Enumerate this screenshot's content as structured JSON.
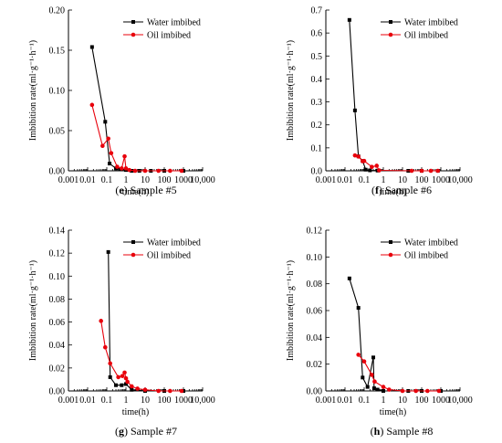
{
  "chart_data": [
    {
      "type": "line",
      "xscale": "log",
      "xlim": [
        0.001,
        10000
      ],
      "ylim": [
        0,
        0.2
      ],
      "yticks": [
        0.0,
        0.05,
        0.1,
        0.15,
        0.2
      ],
      "ytick_labels": [
        "0.00",
        "0.05",
        "0.10",
        "0.15",
        "0.20"
      ],
      "xticks": [
        0.001,
        0.01,
        0.1,
        1,
        10,
        100,
        1000,
        10000
      ],
      "xtick_labels": [
        "0.001",
        "0.01",
        "0.1",
        "1",
        "10",
        "100",
        "1000",
        "10,000"
      ],
      "xlabel": "time(h)",
      "ylabel": "Imbibition rate(ml·g⁻¹·h⁻¹)",
      "caption_letter": "e",
      "caption_text": " Sample #5",
      "legend_position": "top-right",
      "series": [
        {
          "name": "Water imbibed",
          "color": "#000000",
          "marker": "square",
          "x": [
            0.017,
            0.083,
            0.14,
            0.3,
            0.5,
            1,
            2,
            5,
            20,
            100,
            1000
          ],
          "y": [
            0.154,
            0.061,
            0.009,
            0.003,
            0.002,
            0.001,
            0.0,
            0.0,
            0.0,
            0.0,
            0.0
          ]
        },
        {
          "name": "Oil imbibed",
          "color": "#e8000b",
          "marker": "circle",
          "x": [
            0.017,
            0.06,
            0.12,
            0.17,
            0.35,
            0.6,
            0.85,
            1,
            1.5,
            3,
            10,
            50,
            200,
            800
          ],
          "y": [
            0.082,
            0.031,
            0.04,
            0.022,
            0.005,
            0.003,
            0.018,
            0.003,
            0.001,
            0.0,
            0.0,
            0.0,
            0.0,
            0.0
          ]
        }
      ]
    },
    {
      "type": "line",
      "xscale": "log",
      "xlim": [
        0.001,
        10000
      ],
      "ylim": [
        0,
        0.7
      ],
      "yticks": [
        0.0,
        0.1,
        0.2,
        0.3,
        0.4,
        0.5,
        0.6,
        0.7
      ],
      "ytick_labels": [
        "0.0",
        "0.1",
        "0.2",
        "0.3",
        "0.4",
        "0.5",
        "0.6",
        "0.7"
      ],
      "xticks": [
        0.001,
        0.01,
        0.1,
        1,
        10,
        100,
        1000,
        10000
      ],
      "xtick_labels": [
        "0.001",
        "0.01",
        "0.1",
        "1",
        "10",
        "100",
        "1000",
        "10,000"
      ],
      "xlabel": "time(h)",
      "ylabel": "Imbibition rate(ml·g⁻¹·h⁻¹)",
      "caption_letter": "f",
      "caption_text": " Sample #6",
      "legend_position": "top-right",
      "series": [
        {
          "name": "Water imbibed",
          "color": "#000000",
          "marker": "square",
          "x": [
            0.017,
            0.033,
            0.05,
            0.083,
            0.12,
            0.2,
            0.5,
            20,
            100,
            700
          ],
          "y": [
            0.657,
            0.263,
            0.063,
            0.043,
            0.005,
            0.002,
            0.001,
            0.0,
            0.0,
            0.0
          ]
        },
        {
          "name": "Oil imbibed",
          "color": "#e8000b",
          "marker": "circle",
          "x": [
            0.033,
            0.05,
            0.083,
            0.1,
            0.25,
            0.45,
            0.6,
            30,
            100,
            300,
            700
          ],
          "y": [
            0.067,
            0.062,
            0.042,
            0.043,
            0.017,
            0.022,
            0.002,
            0.0,
            0.0,
            0.0,
            0.0
          ]
        }
      ]
    },
    {
      "type": "line",
      "xscale": "log",
      "xlim": [
        0.001,
        10000
      ],
      "ylim": [
        0,
        0.14
      ],
      "yticks": [
        0.0,
        0.02,
        0.04,
        0.06,
        0.08,
        0.1,
        0.12,
        0.14
      ],
      "ytick_labels": [
        "0.00",
        "0.02",
        "0.04",
        "0.06",
        "0.08",
        "0.10",
        "0.12",
        "0.14"
      ],
      "xticks": [
        0.001,
        0.01,
        0.1,
        1,
        10,
        100,
        1000,
        10000
      ],
      "xtick_labels": [
        "0.001",
        "0.01",
        "0.1",
        "1",
        "10",
        "100",
        "1000",
        "10,000"
      ],
      "xlabel": "time(h)",
      "ylabel": "Imbibition rate(ml·g⁻¹·h⁻¹)",
      "caption_letter": "g",
      "caption_text": " Sample #7",
      "legend_position": "top-right",
      "series": [
        {
          "name": "Water imbibed",
          "color": "#000000",
          "marker": "square",
          "x": [
            0.12,
            0.15,
            0.3,
            0.6,
            1,
            2,
            10,
            100,
            1000
          ],
          "y": [
            0.121,
            0.012,
            0.005,
            0.005,
            0.006,
            0.001,
            0.0,
            0.0,
            0.0
          ]
        },
        {
          "name": "Oil imbibed",
          "color": "#e8000b",
          "marker": "circle",
          "x": [
            0.05,
            0.083,
            0.15,
            0.4,
            0.65,
            0.85,
            1,
            1.2,
            2,
            4,
            10,
            50,
            200,
            800
          ],
          "y": [
            0.061,
            0.038,
            0.024,
            0.012,
            0.013,
            0.016,
            0.011,
            0.008,
            0.004,
            0.002,
            0.001,
            0.0,
            0.0,
            0.0
          ]
        }
      ]
    },
    {
      "type": "line",
      "xscale": "log",
      "xlim": [
        0.001,
        10000
      ],
      "ylim": [
        0,
        0.12
      ],
      "yticks": [
        0.0,
        0.02,
        0.04,
        0.06,
        0.08,
        0.1,
        0.12
      ],
      "ytick_labels": [
        "0.00",
        "0.02",
        "0.04",
        "0.06",
        "0.08",
        "0.10",
        "0.12"
      ],
      "xticks": [
        0.001,
        0.01,
        0.1,
        1,
        10,
        100,
        1000,
        10000
      ],
      "xtick_labels": [
        "0.001",
        "0.01",
        "0.1",
        "1",
        "10",
        "100",
        "1000",
        "10,000"
      ],
      "xlabel": "time(h)",
      "ylabel": "Imbibition rate(ml·g⁻¹·h⁻¹)",
      "caption_letter": "h",
      "caption_text": " Sample #8",
      "legend_position": "top-right",
      "series": [
        {
          "name": "Water imbibed",
          "color": "#000000",
          "marker": "square",
          "x": [
            0.017,
            0.05,
            0.083,
            0.15,
            0.3,
            0.33,
            0.5,
            1,
            20,
            100,
            1000
          ],
          "y": [
            0.084,
            0.062,
            0.01,
            0.003,
            0.025,
            0.002,
            0.001,
            0.0,
            0.0,
            0.0,
            0.0
          ]
        },
        {
          "name": "Oil imbibed",
          "color": "#e8000b",
          "marker": "circle",
          "x": [
            0.05,
            0.1,
            0.25,
            0.35,
            1,
            2,
            10,
            50,
            200,
            800
          ],
          "y": [
            0.027,
            0.022,
            0.012,
            0.007,
            0.003,
            0.001,
            0.0,
            0.0,
            0.0,
            0.0
          ]
        }
      ]
    }
  ]
}
